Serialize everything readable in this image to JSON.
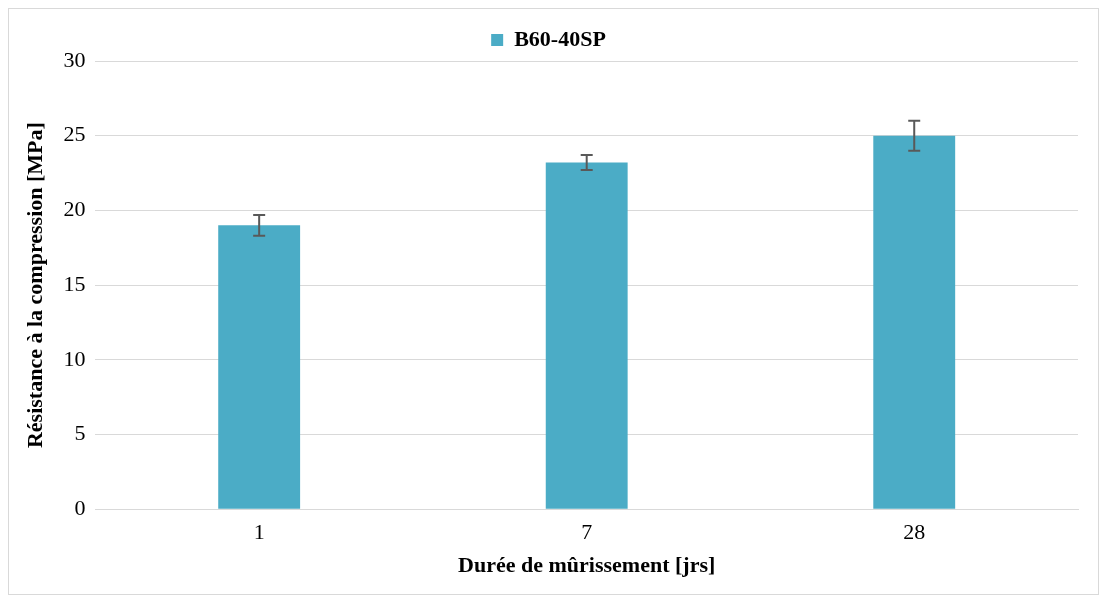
{
  "chart_data": {
    "type": "bar",
    "xlabel": "Durée de mûrissement [jrs]",
    "ylabel": "Résistance à la compression [MPa]",
    "categories": [
      "1",
      "7",
      "28"
    ],
    "series": [
      {
        "name": "B60-40SP",
        "color": "#4bacc6",
        "values": [
          19,
          23.2,
          25
        ],
        "errors": [
          0.7,
          0.5,
          1
        ]
      }
    ],
    "ylim": [
      0,
      30
    ],
    "yticks": [
      0,
      5,
      10,
      15,
      20,
      25,
      30
    ],
    "grid": "y",
    "legend": "top"
  }
}
